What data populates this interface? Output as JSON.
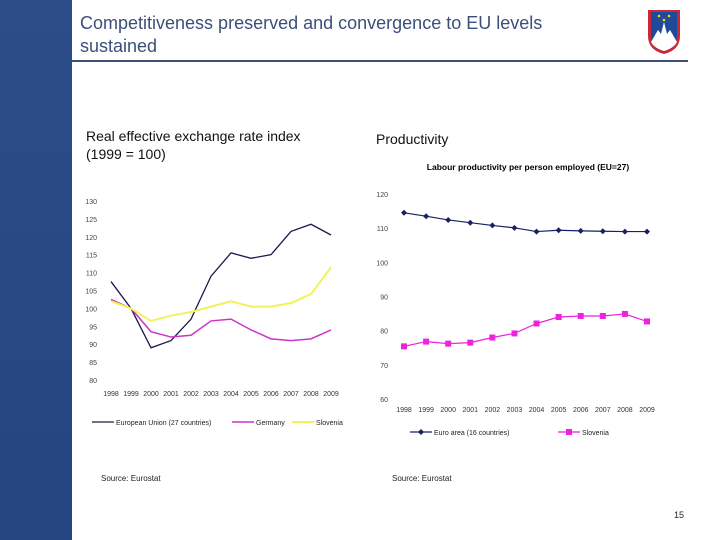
{
  "header": {
    "title": "Competitiveness preserved and convergence to  EU levels sustained"
  },
  "colors": {
    "sidebar": "#2a4a86",
    "title": "#3b4f7a",
    "eu": "#1a1a4e",
    "germany": "#cc33cc",
    "slovenia_left": "#f2f25a",
    "euro_area": "#1a2060",
    "slovenia_right": "#ee22dd"
  },
  "left": {
    "heading": "Real effective exchange rate index",
    "subheading": "(1999 = 100)",
    "source": "Source: Eurostat"
  },
  "right": {
    "heading": "Productivity",
    "source": "Source: Eurostat"
  },
  "page_number": "15",
  "chart_data": [
    {
      "type": "line",
      "title": "",
      "categories": [
        "1998",
        "1999",
        "2000",
        "2001",
        "2002",
        "2003",
        "2004",
        "2005",
        "2006",
        "2007",
        "2008",
        "2009"
      ],
      "ylim": [
        80,
        130
      ],
      "yticks": [
        "80",
        "85",
        "90",
        "95",
        "100",
        "105",
        "110",
        "115",
        "120",
        "125",
        "130"
      ],
      "grid": false,
      "legend": "bottom",
      "series": [
        {
          "name": "European Union (27 countries)",
          "values": [
            107.5,
            100,
            89,
            91,
            97,
            109,
            115.5,
            114,
            115,
            121.5,
            123.5,
            120.5
          ]
        },
        {
          "name": "Germany",
          "values": [
            102.5,
            100,
            93.5,
            92,
            92.5,
            96.5,
            97,
            94,
            91.5,
            91,
            91.5,
            94
          ]
        },
        {
          "name": "Slovenia",
          "values": [
            102,
            100,
            96.5,
            98,
            99,
            100.5,
            102,
            100.5,
            100.5,
            101.5,
            104,
            111.5
          ]
        }
      ]
    },
    {
      "type": "line",
      "title": "Labour productivity per person employed (EU=27)",
      "categories": [
        "1998",
        "1999",
        "2000",
        "2001",
        "2002",
        "2003",
        "2004",
        "2005",
        "2006",
        "2007",
        "2008",
        "2009"
      ],
      "ylim": [
        60,
        120
      ],
      "yticks": [
        "60",
        "70",
        "80",
        "90",
        "100",
        "110",
        "120"
      ],
      "grid": false,
      "legend": "bottom",
      "series": [
        {
          "name": "Euro area (16 countries)",
          "values": [
            114.5,
            113.5,
            112.4,
            111.6,
            110.8,
            110.1,
            109,
            109.4,
            109.2,
            109.1,
            109,
            109
          ]
        },
        {
          "name": "Slovenia",
          "values": [
            75.4,
            76.8,
            76.2,
            76.5,
            78,
            79.2,
            82.1,
            84,
            84.3,
            84.3,
            84.9,
            82.7
          ]
        }
      ]
    }
  ]
}
